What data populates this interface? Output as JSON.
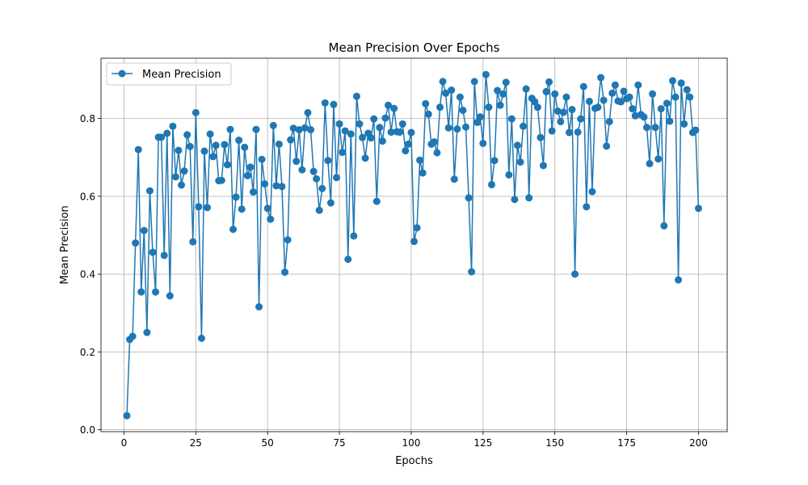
{
  "chart_data": {
    "type": "line",
    "title": "Mean Precision Over Epochs",
    "xlabel": "Epochs",
    "ylabel": "Mean Precision",
    "xlim": [
      -8,
      210
    ],
    "ylim": [
      -0.005,
      0.955
    ],
    "xticks": [
      0,
      25,
      50,
      75,
      100,
      125,
      150,
      175,
      200
    ],
    "yticks": [
      0.0,
      0.2,
      0.4,
      0.6,
      0.8
    ],
    "ytick_labels": [
      "0.0",
      "0.2",
      "0.4",
      "0.6",
      "0.8"
    ],
    "grid": true,
    "legend_position": "upper-left",
    "color": "#1f77b4",
    "series": [
      {
        "name": "Mean Precision",
        "marker": "circle",
        "x": [
          1,
          2,
          3,
          4,
          5,
          6,
          7,
          8,
          9,
          10,
          11,
          12,
          13,
          14,
          15,
          16,
          17,
          18,
          19,
          20,
          21,
          22,
          23,
          24,
          25,
          26,
          27,
          28,
          29,
          30,
          31,
          32,
          33,
          34,
          35,
          36,
          37,
          38,
          39,
          40,
          41,
          42,
          43,
          44,
          45,
          46,
          47,
          48,
          49,
          50,
          51,
          52,
          53,
          54,
          55,
          56,
          57,
          58,
          59,
          60,
          61,
          62,
          63,
          64,
          65,
          66,
          67,
          68,
          69,
          70,
          71,
          72,
          73,
          74,
          75,
          76,
          77,
          78,
          79,
          80,
          81,
          82,
          83,
          84,
          85,
          86,
          87,
          88,
          89,
          90,
          91,
          92,
          93,
          94,
          95,
          96,
          97,
          98,
          99,
          100,
          101,
          102,
          103,
          104,
          105,
          106,
          107,
          108,
          109,
          110,
          111,
          112,
          113,
          114,
          115,
          116,
          117,
          118,
          119,
          120,
          121,
          122,
          123,
          124,
          125,
          126,
          127,
          128,
          129,
          130,
          131,
          132,
          133,
          134,
          135,
          136,
          137,
          138,
          139,
          140,
          141,
          142,
          143,
          144,
          145,
          146,
          147,
          148,
          149,
          150,
          151,
          152,
          153,
          154,
          155,
          156,
          157,
          158,
          159,
          160,
          161,
          162,
          163,
          164,
          165,
          166,
          167,
          168,
          169,
          170,
          171,
          172,
          173,
          174,
          175,
          176,
          177,
          178,
          179,
          180,
          181,
          182,
          183,
          184,
          185,
          186,
          187,
          188,
          189,
          190,
          191,
          192,
          193,
          194,
          195,
          196,
          197,
          198,
          199,
          200
        ],
        "y": [
          0.036,
          0.232,
          0.24,
          0.48,
          0.72,
          0.354,
          0.512,
          0.25,
          0.614,
          0.456,
          0.354,
          0.752,
          0.752,
          0.448,
          0.762,
          0.344,
          0.78,
          0.65,
          0.718,
          0.629,
          0.665,
          0.758,
          0.728,
          0.483,
          0.815,
          0.573,
          0.235,
          0.716,
          0.571,
          0.76,
          0.702,
          0.731,
          0.64,
          0.641,
          0.733,
          0.681,
          0.772,
          0.515,
          0.598,
          0.744,
          0.567,
          0.726,
          0.653,
          0.675,
          0.611,
          0.772,
          0.316,
          0.695,
          0.632,
          0.569,
          0.541,
          0.782,
          0.627,
          0.734,
          0.625,
          0.405,
          0.488,
          0.745,
          0.775,
          0.69,
          0.771,
          0.668,
          0.776,
          0.815,
          0.771,
          0.664,
          0.645,
          0.564,
          0.62,
          0.84,
          0.692,
          0.583,
          0.836,
          0.648,
          0.786,
          0.713,
          0.768,
          0.438,
          0.76,
          0.498,
          0.857,
          0.786,
          0.751,
          0.698,
          0.762,
          0.75,
          0.799,
          0.587,
          0.777,
          0.742,
          0.801,
          0.834,
          0.765,
          0.826,
          0.766,
          0.765,
          0.786,
          0.717,
          0.734,
          0.764,
          0.484,
          0.519,
          0.693,
          0.66,
          0.838,
          0.811,
          0.734,
          0.74,
          0.712,
          0.829,
          0.895,
          0.865,
          0.776,
          0.873,
          0.644,
          0.773,
          0.855,
          0.821,
          0.778,
          0.596,
          0.406,
          0.895,
          0.79,
          0.804,
          0.736,
          0.913,
          0.829,
          0.63,
          0.692,
          0.872,
          0.834,
          0.863,
          0.893,
          0.655,
          0.799,
          0.592,
          0.731,
          0.688,
          0.78,
          0.876,
          0.596,
          0.852,
          0.843,
          0.829,
          0.751,
          0.679,
          0.869,
          0.894,
          0.768,
          0.863,
          0.819,
          0.792,
          0.816,
          0.855,
          0.764,
          0.823,
          0.4,
          0.765,
          0.799,
          0.882,
          0.573,
          0.844,
          0.612,
          0.826,
          0.829,
          0.905,
          0.847,
          0.729,
          0.792,
          0.865,
          0.886,
          0.845,
          0.843,
          0.87,
          0.851,
          0.855,
          0.825,
          0.807,
          0.886,
          0.81,
          0.804,
          0.777,
          0.684,
          0.863,
          0.777,
          0.696,
          0.825,
          0.524,
          0.839,
          0.793,
          0.897,
          0.855,
          0.385,
          0.891,
          0.786,
          0.874,
          0.855,
          0.764,
          0.77,
          0.569
        ]
      }
    ]
  }
}
